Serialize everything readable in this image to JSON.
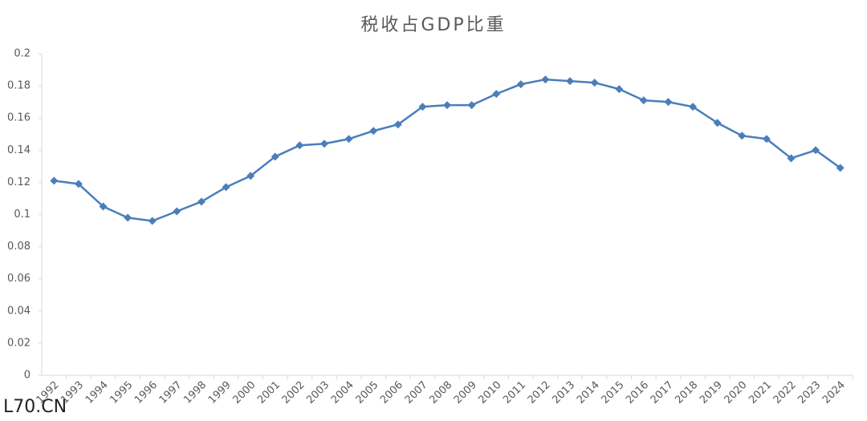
{
  "chart_data": {
    "type": "line",
    "title": "税收占GDP比重",
    "categories": [
      "1992",
      "1993",
      "1994",
      "1995",
      "1996",
      "1997",
      "1998",
      "1999",
      "2000",
      "2001",
      "2002",
      "2003",
      "2004",
      "2005",
      "2006",
      "2007",
      "2008",
      "2009",
      "2010",
      "2011",
      "2012",
      "2013",
      "2014",
      "2015",
      "2016",
      "2017",
      "2018",
      "2019",
      "2020",
      "2021",
      "2022",
      "2023",
      "2024"
    ],
    "series": [
      {
        "color": "#4a7ebb",
        "values": [
          0.121,
          0.119,
          0.105,
          0.098,
          0.096,
          0.102,
          0.108,
          0.117,
          0.124,
          0.136,
          0.143,
          0.144,
          0.147,
          0.152,
          0.156,
          0.167,
          0.168,
          0.168,
          0.175,
          0.181,
          0.184,
          0.183,
          0.182,
          0.178,
          0.171,
          0.17,
          0.167,
          0.157,
          0.149,
          0.147,
          0.135,
          0.14,
          0.129
        ]
      }
    ],
    "ylim": [
      0,
      0.2
    ],
    "yticks": [
      0,
      0.02,
      0.04,
      0.06,
      0.08,
      0.1,
      0.12,
      0.14,
      0.16,
      0.18,
      0.2
    ],
    "grid": false,
    "watermark": "L70.CN"
  }
}
